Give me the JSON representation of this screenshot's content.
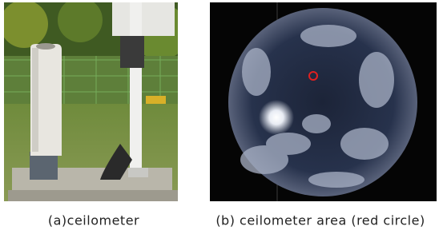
{
  "figure": {
    "captions": [
      "(a)ceilometer",
      "(b) ceilometer area (red circle)"
    ]
  }
}
